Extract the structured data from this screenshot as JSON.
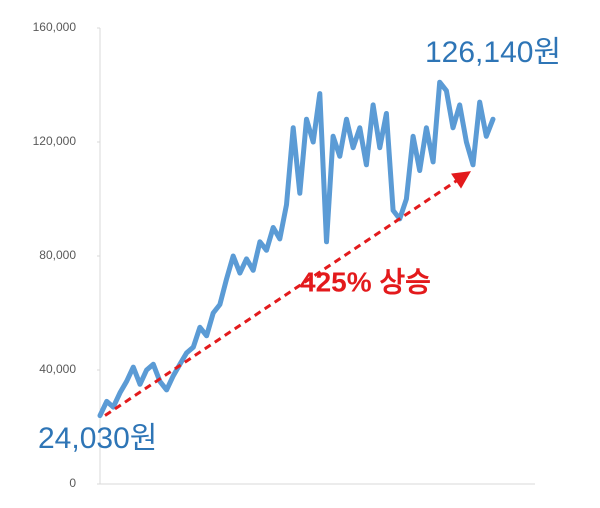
{
  "chart_data": {
    "type": "line",
    "series": [
      {
        "color": "#5b9bd5",
        "values": [
          24000,
          29000,
          27000,
          32000,
          36000,
          41000,
          35000,
          40000,
          42000,
          36000,
          33000,
          38000,
          42000,
          46000,
          48000,
          55000,
          52000,
          60000,
          63000,
          72000,
          80000,
          74000,
          79000,
          75000,
          85000,
          82000,
          90000,
          86000,
          98000,
          125000,
          102000,
          128000,
          120000,
          137000,
          85000,
          122000,
          115000,
          128000,
          118000,
          125000,
          112000,
          133000,
          118000,
          130000,
          96000,
          93000,
          100000,
          122000,
          110000,
          125000,
          113000,
          141000,
          138000,
          125000,
          133000,
          120000,
          112000,
          134000,
          122000,
          128000
        ]
      }
    ],
    "ylim": [
      0,
      160000
    ],
    "yticks": [
      0,
      {
        "value": 40000,
        "label": "40,000"
      },
      {
        "value": 80000,
        "label": "80,000"
      },
      {
        "value": 120000,
        "label": "120,000"
      },
      {
        "value": 160000,
        "label": "160,000"
      }
    ],
    "annotations": {
      "start": {
        "value": 24030,
        "label": "24,030원"
      },
      "end": {
        "value": 126140,
        "label": "126,140원"
      },
      "change": "425% 상승"
    },
    "arrow_color": "#e31a1c"
  }
}
